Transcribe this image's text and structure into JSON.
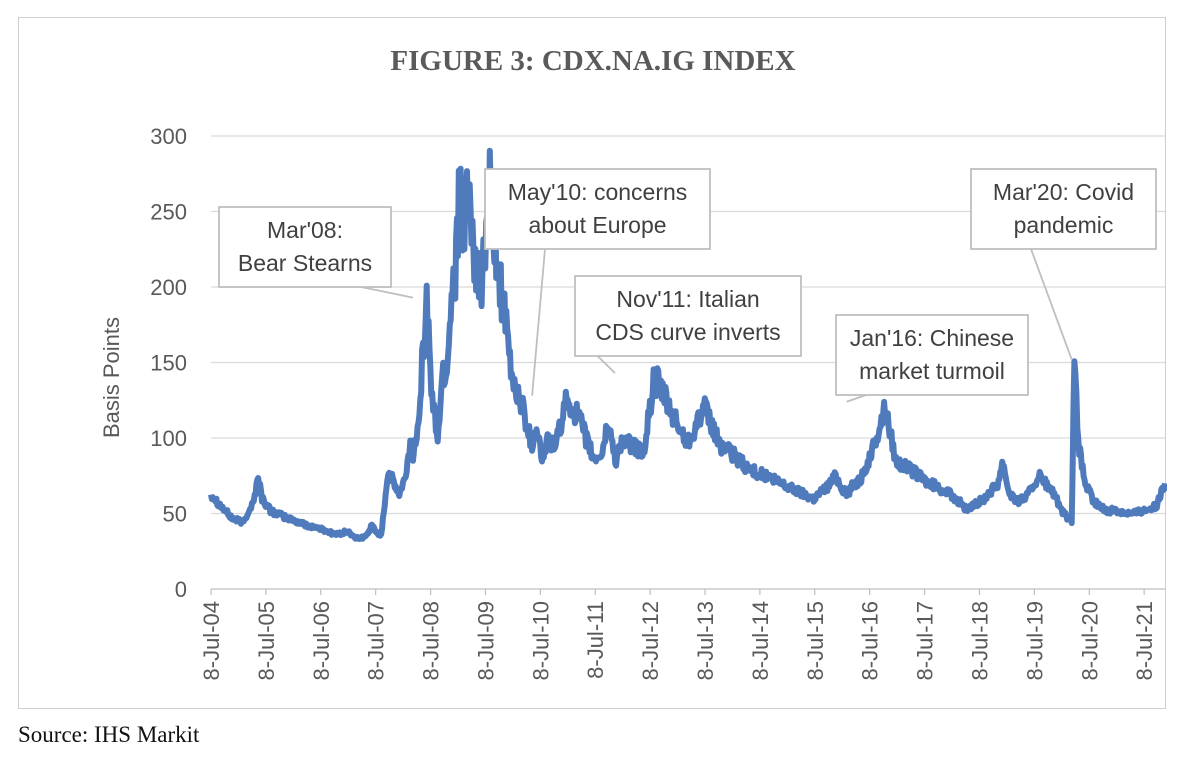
{
  "chart_data": {
    "type": "line",
    "title": "FIGURE 3:  CDX.NA.IG INDEX",
    "ylabel": "Basis  Points",
    "xlabel": "",
    "ylim": [
      0,
      300
    ],
    "yticks": [
      0,
      50,
      100,
      150,
      200,
      250,
      300
    ],
    "grid": true,
    "legend": "none",
    "line_color": "#4f7bbd",
    "x_tick_labels": [
      "8-Jul-04",
      "8-Jul-05",
      "8-Jul-06",
      "8-Jul-07",
      "8-Jul-08",
      "8-Jul-09",
      "8-Jul-10",
      "8-Jul-11",
      "8-Jul-12",
      "8-Jul-13",
      "8-Jul-14",
      "8-Jul-15",
      "8-Jul-16",
      "8-Jul-17",
      "8-Jul-18",
      "8-Jul-19",
      "8-Jul-20",
      "8-Jul-21"
    ],
    "x_range_years": [
      2004.52,
      2021.9
    ],
    "series": [
      {
        "name": "CDX.NA.IG",
        "x": [
          2004.52,
          2004.7,
          2004.9,
          2005.1,
          2005.3,
          2005.38,
          2005.45,
          2005.6,
          2005.9,
          2006.2,
          2006.5,
          2006.8,
          2007.0,
          2007.2,
          2007.35,
          2007.45,
          2007.55,
          2007.62,
          2007.75,
          2007.95,
          2008.05,
          2008.15,
          2008.2,
          2008.3,
          2008.45,
          2008.55,
          2008.65,
          2008.75,
          2008.8,
          2008.87,
          2008.92,
          2008.97,
          2009.05,
          2009.12,
          2009.2,
          2009.3,
          2009.45,
          2009.6,
          2009.75,
          2009.85,
          2010.0,
          2010.2,
          2010.37,
          2010.45,
          2010.55,
          2010.65,
          2010.8,
          2011.0,
          2011.2,
          2011.35,
          2011.5,
          2011.65,
          2011.75,
          2011.9,
          2012.0,
          2012.2,
          2012.4,
          2012.6,
          2012.8,
          2013.0,
          2013.2,
          2013.5,
          2013.8,
          2014.0,
          2014.3,
          2014.6,
          2014.9,
          2015.2,
          2015.5,
          2015.75,
          2015.9,
          2016.1,
          2016.2,
          2016.4,
          2016.6,
          2016.8,
          2017.0,
          2017.3,
          2017.6,
          2017.9,
          2018.0,
          2018.15,
          2018.3,
          2018.6,
          2018.85,
          2018.95,
          2019.05,
          2019.2,
          2019.4,
          2019.6,
          2019.9,
          2020.0,
          2020.1,
          2020.2,
          2020.25,
          2020.32,
          2020.45,
          2020.6,
          2020.8,
          2021.0,
          2021.3,
          2021.5,
          2021.75,
          2021.9
        ],
        "values": [
          63,
          55,
          47,
          44,
          58,
          75,
          60,
          52,
          47,
          43,
          40,
          36,
          38,
          33,
          35,
          42,
          37,
          36,
          78,
          62,
          72,
          95,
          85,
          115,
          190,
          125,
          100,
          145,
          140,
          175,
          205,
          215,
          265,
          215,
          280,
          210,
          200,
          260,
          215,
          185,
          140,
          120,
          95,
          110,
          85,
          98,
          95,
          125,
          115,
          100,
          85,
          90,
          110,
          85,
          98,
          95,
          90,
          140,
          125,
          110,
          97,
          120,
          95,
          90,
          80,
          75,
          70,
          65,
          60,
          68,
          75,
          62,
          68,
          75,
          95,
          120,
          85,
          78,
          70,
          65,
          62,
          58,
          52,
          60,
          70,
          85,
          65,
          58,
          62,
          75,
          62,
          52,
          48,
          45,
          150,
          95,
          70,
          58,
          52,
          52,
          50,
          52,
          55,
          70
        ]
      }
    ],
    "annotations": [
      {
        "lines": [
          "Mar'08:",
          "Bear Stearns"
        ],
        "date": 2008.2,
        "value": 193
      },
      {
        "lines": [
          "May'10: concerns",
          "about  Europe"
        ],
        "date": 2010.37,
        "value": 128
      },
      {
        "lines": [
          "Nov'11: Italian",
          "CDS curve inverts"
        ],
        "date": 2011.88,
        "value": 143
      },
      {
        "lines": [
          "Jan'16: Chinese",
          "market turmoil"
        ],
        "date": 2016.1,
        "value": 124
      },
      {
        "lines": [
          "Mar'20: Covid",
          "pandemic"
        ],
        "date": 2020.2,
        "value": 152
      }
    ]
  },
  "source": "Source:  IHS Markit"
}
